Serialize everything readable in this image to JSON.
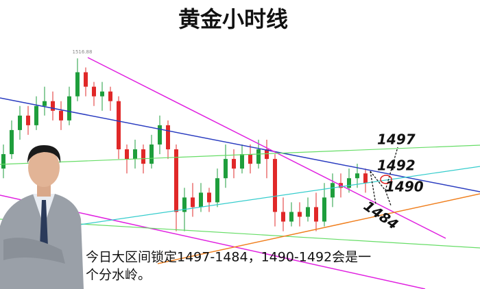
{
  "chart_data": {
    "type": "candlestick",
    "title": "黄金小时线",
    "peak_label": "1516.88",
    "annotations": [
      "1497",
      "1492",
      "1490",
      "1484"
    ],
    "caption": [
      "今日大区间锁定1497-1484，1490-1492会是一",
      "个分水岭。"
    ],
    "ylim": [
      1469,
      1529
    ],
    "up_color": "#1e9e3c",
    "down_color": "#e02828",
    "open": [
      1494,
      1497,
      1502,
      1505,
      1503,
      1507,
      1508,
      1506,
      1504,
      1509,
      1514,
      1511,
      1509,
      1510,
      1508,
      1498,
      1496,
      1498,
      1495,
      1499,
      1503,
      1498,
      1485,
      1488,
      1486,
      1489,
      1487,
      1492,
      1496,
      1494,
      1497,
      1495,
      1498,
      1496,
      1485,
      1483,
      1485,
      1484,
      1486,
      1483,
      1488,
      1491,
      1490,
      1492,
      1493
    ],
    "high": [
      1499,
      1504,
      1507,
      1507,
      1509,
      1511,
      1510,
      1508,
      1511,
      1516.88,
      1515,
      1512,
      1512,
      1511,
      1509,
      1499,
      1500,
      1499,
      1501,
      1505,
      1504,
      1499,
      1490,
      1491,
      1491,
      1490,
      1494,
      1499,
      1498,
      1499,
      1499,
      1500,
      1500,
      1497,
      1488,
      1487,
      1487,
      1488,
      1489,
      1491,
      1493,
      1493,
      1494,
      1495,
      1494
    ],
    "low": [
      1492,
      1496,
      1500,
      1501,
      1502,
      1505,
      1504,
      1502,
      1503,
      1508,
      1509,
      1507,
      1506,
      1506,
      1496,
      1493,
      1494,
      1493,
      1494,
      1497,
      1496,
      1481,
      1481,
      1484,
      1485,
      1485,
      1486,
      1490,
      1492,
      1493,
      1493,
      1494,
      1492,
      1482,
      1481,
      1482,
      1482,
      1483,
      1481,
      1482,
      1486,
      1488,
      1489,
      1490,
      1489
    ],
    "close": [
      1497,
      1502,
      1505,
      1503,
      1507,
      1508,
      1506,
      1504,
      1509,
      1514,
      1511,
      1509,
      1510,
      1508,
      1498,
      1496,
      1498,
      1495,
      1499,
      1503,
      1498,
      1485,
      1488,
      1486,
      1489,
      1487,
      1492,
      1496,
      1494,
      1497,
      1495,
      1498,
      1496,
      1485,
      1483,
      1485,
      1484,
      1486,
      1483,
      1488,
      1491,
      1490,
      1492,
      1493,
      1491
    ]
  }
}
